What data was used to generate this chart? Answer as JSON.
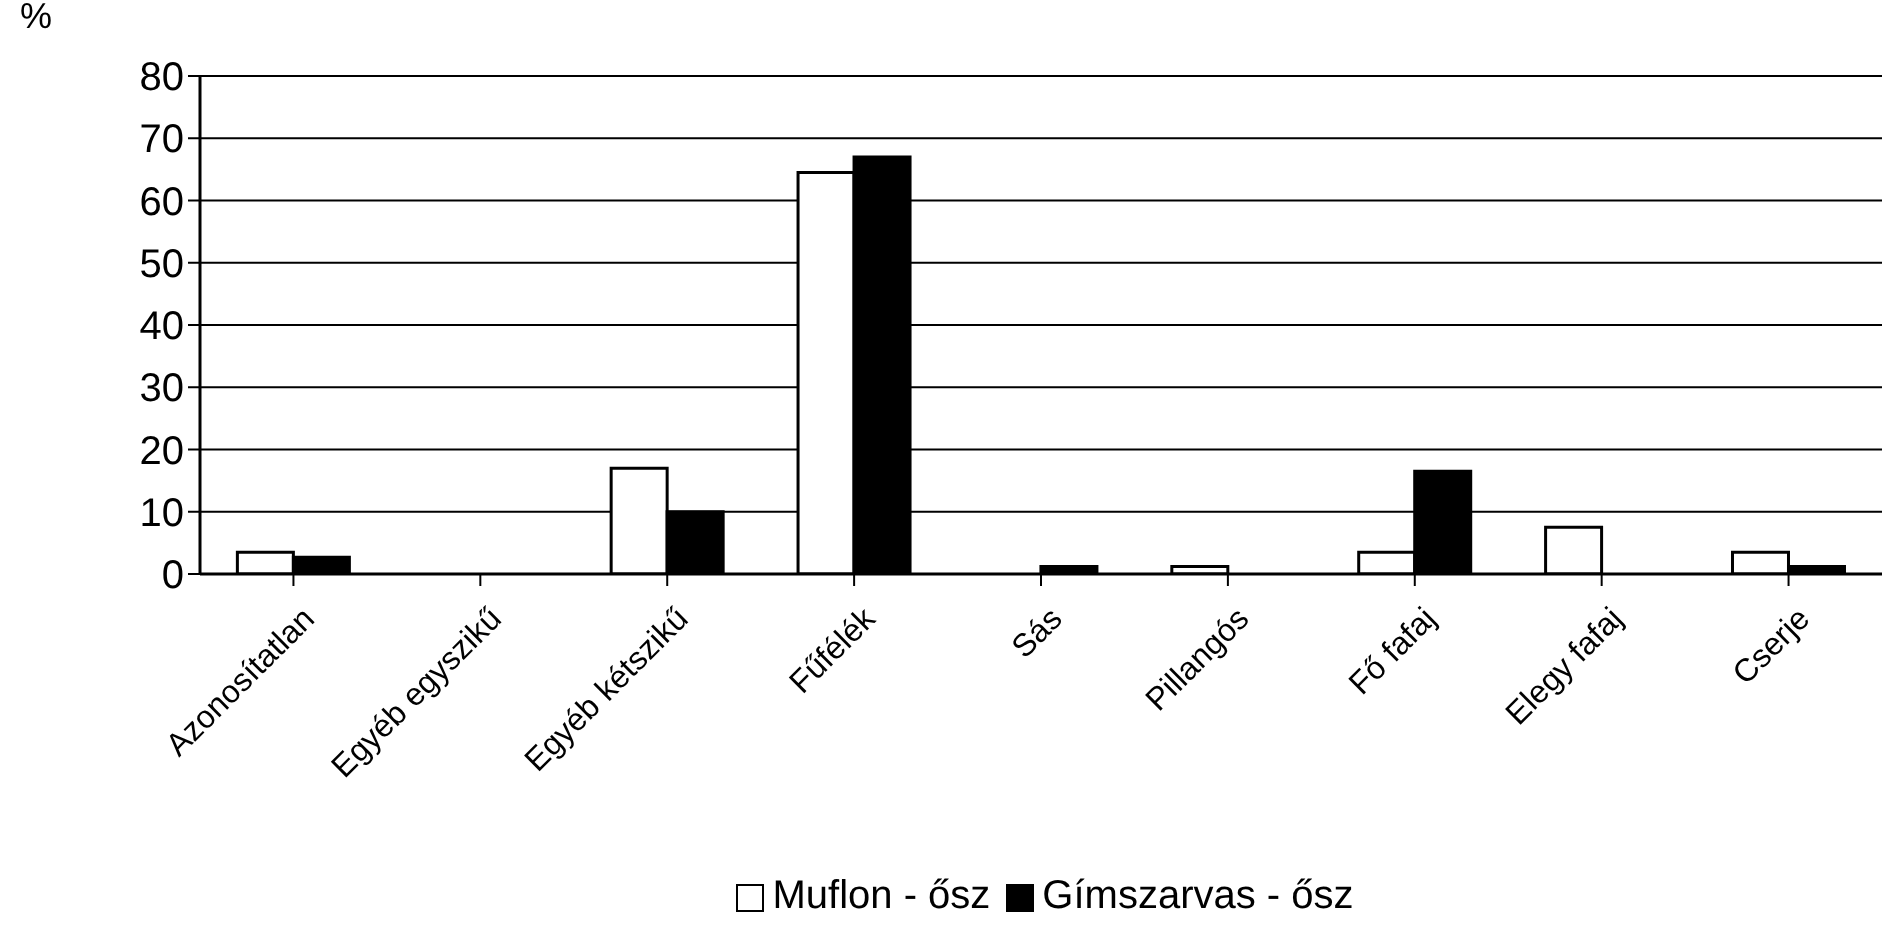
{
  "chart_data": {
    "type": "bar",
    "ylabel": "%",
    "categories": [
      "Azonosítatlan",
      "Egyéb egyszikű",
      "Egyéb kétszikű",
      "Fűfélék",
      "Sás",
      "Pillangós",
      "Fő fafaj",
      "Elegy fafaj",
      "Cserje"
    ],
    "series": [
      {
        "name": "Muflon - ősz",
        "color": "#ffffff",
        "values": [
          3.5,
          0,
          17,
          64.5,
          0,
          1.2,
          3.5,
          7.5,
          3.5
        ]
      },
      {
        "name": "Gímszarvas - ősz",
        "color": "#000000",
        "values": [
          2.7,
          0,
          10,
          67,
          1.2,
          0,
          16.5,
          0,
          1.2
        ]
      }
    ],
    "ylim": [
      0,
      80
    ],
    "yticks": [
      0,
      10,
      20,
      30,
      40,
      50,
      60,
      70,
      80
    ],
    "grid": "y",
    "legend": "bottom"
  }
}
